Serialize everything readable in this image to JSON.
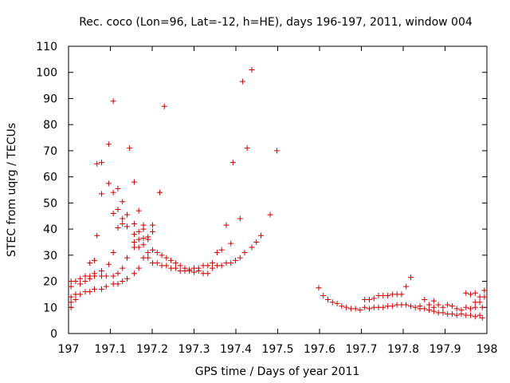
{
  "chart_data": {
    "type": "scatter",
    "title": "Rec. coco (Lon=96, Lat=-12, h=HE), days 196-197, 2011, window 004",
    "xlabel": "GPS time / Days of year 2011",
    "ylabel": "STEC from uqrg / TECUs",
    "xlim": [
      197,
      198
    ],
    "ylim": [
      0,
      110
    ],
    "xticks": [
      "197",
      "197.1",
      "197.2",
      "197.3",
      "197.4",
      "197.5",
      "197.6",
      "197.7",
      "197.8",
      "197.9",
      "198"
    ],
    "yticks": [
      "0",
      "10",
      "20",
      "30",
      "40",
      "50",
      "60",
      "70",
      "80",
      "90",
      "100",
      "110"
    ],
    "grid": false,
    "legend": "none",
    "marker": "plus",
    "color": "#cc0000",
    "points": [
      [
        197.006,
        10
      ],
      [
        197.006,
        12
      ],
      [
        197.006,
        14
      ],
      [
        197.006,
        18
      ],
      [
        197.006,
        20
      ],
      [
        197.017,
        13
      ],
      [
        197.017,
        15
      ],
      [
        197.017,
        20
      ],
      [
        197.028,
        15
      ],
      [
        197.028,
        19
      ],
      [
        197.028,
        21
      ],
      [
        197.04,
        16
      ],
      [
        197.04,
        20
      ],
      [
        197.04,
        22
      ],
      [
        197.051,
        16
      ],
      [
        197.051,
        21
      ],
      [
        197.051,
        22
      ],
      [
        197.051,
        27
      ],
      [
        197.062,
        17
      ],
      [
        197.062,
        22
      ],
      [
        197.062,
        23
      ],
      [
        197.062,
        28
      ],
      [
        197.068,
        37.5
      ],
      [
        197.068,
        65
      ],
      [
        197.079,
        17
      ],
      [
        197.079,
        22
      ],
      [
        197.079,
        24
      ],
      [
        197.079,
        53.5
      ],
      [
        197.079,
        65.5
      ],
      [
        197.09,
        18
      ],
      [
        197.09,
        22
      ],
      [
        197.096,
        57.5
      ],
      [
        197.096,
        72.5
      ],
      [
        197.096,
        26.5
      ],
      [
        197.107,
        19
      ],
      [
        197.107,
        22
      ],
      [
        197.107,
        31
      ],
      [
        197.107,
        46
      ],
      [
        197.107,
        54
      ],
      [
        197.107,
        89
      ],
      [
        197.118,
        19
      ],
      [
        197.118,
        23
      ],
      [
        197.118,
        40.5
      ],
      [
        197.118,
        47.5
      ],
      [
        197.118,
        55.5
      ],
      [
        197.129,
        20
      ],
      [
        197.129,
        25
      ],
      [
        197.129,
        42
      ],
      [
        197.129,
        44
      ],
      [
        197.129,
        50.5
      ],
      [
        197.14,
        21
      ],
      [
        197.14,
        29
      ],
      [
        197.14,
        41
      ],
      [
        197.14,
        45.5
      ],
      [
        197.146,
        71
      ],
      [
        197.157,
        23
      ],
      [
        197.157,
        33
      ],
      [
        197.157,
        35
      ],
      [
        197.157,
        38
      ],
      [
        197.157,
        42
      ],
      [
        197.157,
        58
      ],
      [
        197.168,
        25
      ],
      [
        197.168,
        33
      ],
      [
        197.168,
        36
      ],
      [
        197.168,
        39
      ],
      [
        197.168,
        47
      ],
      [
        197.179,
        29
      ],
      [
        197.179,
        34
      ],
      [
        197.179,
        36.5
      ],
      [
        197.179,
        40
      ],
      [
        197.179,
        41.5
      ],
      [
        197.19,
        29
      ],
      [
        197.19,
        31
      ],
      [
        197.19,
        36
      ],
      [
        197.19,
        37
      ],
      [
        197.201,
        27
      ],
      [
        197.201,
        32
      ],
      [
        197.201,
        39
      ],
      [
        197.201,
        41.5
      ],
      [
        197.212,
        27
      ],
      [
        197.212,
        31
      ],
      [
        197.218,
        54
      ],
      [
        197.229,
        87
      ],
      [
        197.223,
        26
      ],
      [
        197.223,
        30
      ],
      [
        197.234,
        26
      ],
      [
        197.234,
        29
      ],
      [
        197.245,
        25
      ],
      [
        197.245,
        28
      ],
      [
        197.256,
        25
      ],
      [
        197.256,
        27
      ],
      [
        197.267,
        24
      ],
      [
        197.267,
        26
      ],
      [
        197.278,
        24
      ],
      [
        197.278,
        25
      ],
      [
        197.289,
        24
      ],
      [
        197.289,
        24.5
      ],
      [
        197.3,
        23.5
      ],
      [
        197.3,
        25
      ],
      [
        197.311,
        24
      ],
      [
        197.311,
        25
      ],
      [
        197.322,
        23
      ],
      [
        197.322,
        26
      ],
      [
        197.333,
        23
      ],
      [
        197.333,
        26
      ],
      [
        197.344,
        25
      ],
      [
        197.344,
        27
      ],
      [
        197.355,
        26
      ],
      [
        197.355,
        31
      ],
      [
        197.366,
        26
      ],
      [
        197.366,
        32
      ],
      [
        197.377,
        27
      ],
      [
        197.377,
        41.5
      ],
      [
        197.388,
        27
      ],
      [
        197.388,
        34.5
      ],
      [
        197.393,
        65.5
      ],
      [
        197.399,
        28
      ],
      [
        197.41,
        29
      ],
      [
        197.41,
        44
      ],
      [
        197.416,
        96.5
      ],
      [
        197.421,
        31
      ],
      [
        197.427,
        71
      ],
      [
        197.438,
        33
      ],
      [
        197.438,
        101
      ],
      [
        197.449,
        35
      ],
      [
        197.46,
        37.5
      ],
      [
        197.482,
        45.5
      ],
      [
        197.498,
        70
      ],
      [
        197.598,
        17.5
      ],
      [
        197.609,
        14.5
      ],
      [
        197.62,
        13
      ],
      [
        197.631,
        12
      ],
      [
        197.642,
        11.5
      ],
      [
        197.653,
        10.5
      ],
      [
        197.664,
        10
      ],
      [
        197.675,
        9.5
      ],
      [
        197.686,
        9.5
      ],
      [
        197.697,
        9
      ],
      [
        197.708,
        10
      ],
      [
        197.708,
        13
      ],
      [
        197.719,
        9.5
      ],
      [
        197.719,
        13
      ],
      [
        197.73,
        10
      ],
      [
        197.73,
        13.5
      ],
      [
        197.741,
        10
      ],
      [
        197.741,
        14.5
      ],
      [
        197.752,
        10
      ],
      [
        197.752,
        14.5
      ],
      [
        197.763,
        10.5
      ],
      [
        197.763,
        14.5
      ],
      [
        197.774,
        10.5
      ],
      [
        197.774,
        15
      ],
      [
        197.785,
        11
      ],
      [
        197.785,
        15
      ],
      [
        197.796,
        11
      ],
      [
        197.796,
        15
      ],
      [
        197.807,
        11
      ],
      [
        197.807,
        18
      ],
      [
        197.818,
        10.5
      ],
      [
        197.818,
        21.5
      ],
      [
        197.829,
        10
      ],
      [
        197.84,
        9.5
      ],
      [
        197.84,
        10.5
      ],
      [
        197.851,
        9.5
      ],
      [
        197.851,
        13
      ],
      [
        197.862,
        9
      ],
      [
        197.862,
        11
      ],
      [
        197.873,
        8.5
      ],
      [
        197.873,
        10
      ],
      [
        197.873,
        12.5
      ],
      [
        197.884,
        8
      ],
      [
        197.884,
        11
      ],
      [
        197.895,
        8
      ],
      [
        197.895,
        10
      ],
      [
        197.906,
        7.5
      ],
      [
        197.906,
        11
      ],
      [
        197.917,
        7.5
      ],
      [
        197.917,
        10.5
      ],
      [
        197.928,
        7
      ],
      [
        197.928,
        9.5
      ],
      [
        197.939,
        7.5
      ],
      [
        197.939,
        9
      ],
      [
        197.95,
        7
      ],
      [
        197.95,
        10
      ],
      [
        197.95,
        15.5
      ],
      [
        197.961,
        7
      ],
      [
        197.961,
        9.5
      ],
      [
        197.961,
        15
      ],
      [
        197.972,
        6.5
      ],
      [
        197.972,
        10
      ],
      [
        197.972,
        12
      ],
      [
        197.972,
        15.5
      ],
      [
        197.983,
        7
      ],
      [
        197.983,
        12
      ],
      [
        197.983,
        14
      ],
      [
        197.989,
        6
      ],
      [
        197.989,
        10
      ],
      [
        197.994,
        14
      ],
      [
        197.994,
        16.5
      ]
    ]
  }
}
